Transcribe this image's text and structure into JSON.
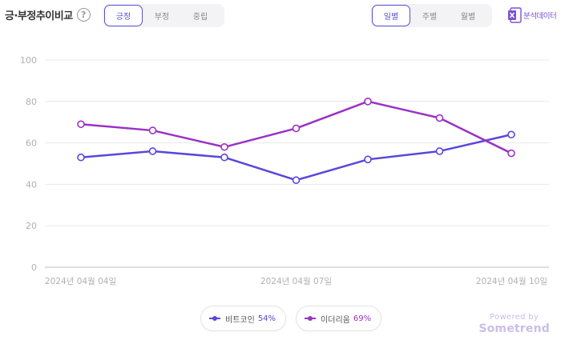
{
  "header": {
    "title": "긍·부정추이비교",
    "help_icon": "?",
    "sentiment_tabs": [
      "긍정",
      "부정",
      "중립"
    ],
    "sentiment_selected": "긍정",
    "period_tabs": [
      "일별",
      "주별",
      "월별"
    ],
    "period_selected": "일별",
    "export_label": "분석데이터",
    "export_icon": "excel-icon"
  },
  "legend": [
    {
      "name": "비트코인",
      "percent": "54%",
      "color": "#5848db"
    },
    {
      "name": "이더리움",
      "percent": "69%",
      "color": "#9b32c5"
    }
  ],
  "footer": {
    "powered_by": "Powered by",
    "brand": "Sometrend"
  },
  "chart_data": {
    "type": "line",
    "x": [
      "2024-04-04",
      "2024-04-05",
      "2024-04-06",
      "2024-04-07",
      "2024-04-08",
      "2024-04-09",
      "2024-04-10"
    ],
    "x_tick_labels": [
      "2024년 04월 04일",
      "2024년 04월 07일",
      "2024년 04월 10일"
    ],
    "x_tick_indices": [
      0,
      3,
      6
    ],
    "ylim": [
      0,
      100
    ],
    "yticks": [
      0,
      20,
      40,
      60,
      80,
      100
    ],
    "grid": true,
    "series": [
      {
        "name": "비트코인",
        "color": "#5848db",
        "values": [
          53,
          56,
          53,
          42,
          52,
          56,
          64
        ]
      },
      {
        "name": "이더리움",
        "color": "#9b32c5",
        "values": [
          69,
          66,
          58,
          67,
          80,
          72,
          55
        ]
      }
    ]
  }
}
